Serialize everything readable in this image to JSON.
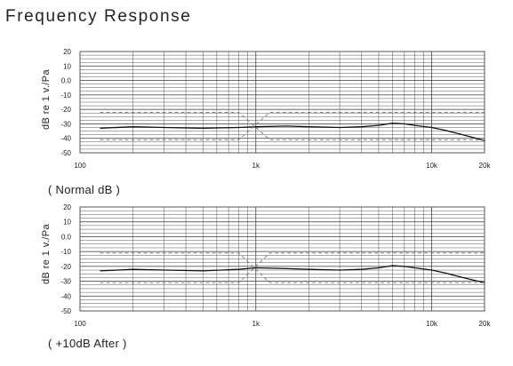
{
  "page": {
    "title": "Frequency Response"
  },
  "colors": {
    "grid": "#555555",
    "trace": "#111111",
    "dashed": "#777777"
  },
  "chart_data": [
    {
      "type": "line",
      "caption": "( Normal dB )",
      "ylabel": "dB re 1 v./Pa",
      "xscale": "log",
      "xlim": [
        100,
        20000
      ],
      "ylim": [
        -50,
        20
      ],
      "yticks": [
        "20",
        "10",
        "0.0",
        "-10",
        "-20",
        "-30",
        "-40",
        "-50"
      ],
      "ytick_values": [
        20,
        10,
        0,
        -10,
        -20,
        -30,
        -40,
        -50
      ],
      "xticks": [
        "100",
        "1k",
        "10k",
        "20k"
      ],
      "xtick_values": [
        100,
        1000,
        10000,
        20000
      ],
      "grid": true,
      "series": [
        {
          "style": "solid",
          "x": [
            130,
            200,
            300,
            500,
            800,
            1000,
            1500,
            2000,
            3000,
            4000,
            5000,
            6000,
            7000,
            8000,
            10000,
            12000,
            15000,
            20000
          ],
          "y": [
            -33,
            -32,
            -32.5,
            -33,
            -32.5,
            -32,
            -31.5,
            -32,
            -32.5,
            -32,
            -31,
            -29.5,
            -30,
            -31,
            -32.5,
            -34.5,
            -37.5,
            -41.5
          ]
        },
        {
          "style": "dashed",
          "x": [
            130,
            800,
            1200,
            20000
          ],
          "y": [
            -22,
            -22,
            -41,
            -41
          ]
        },
        {
          "style": "dashed",
          "x": [
            130,
            800,
            1200,
            20000
          ],
          "y": [
            -41,
            -41,
            -22,
            -22
          ]
        }
      ]
    },
    {
      "type": "line",
      "caption": "( +10dB After )",
      "ylabel": "dB re 1 v./Pa",
      "xscale": "log",
      "xlim": [
        100,
        20000
      ],
      "ylim": [
        -50,
        20
      ],
      "yticks": [
        "20",
        "10",
        "0.0",
        "-10",
        "-20",
        "-30",
        "-40",
        "-50"
      ],
      "ytick_values": [
        20,
        10,
        0,
        -10,
        -20,
        -30,
        -40,
        -50
      ],
      "xticks": [
        "100",
        "1k",
        "10k",
        "20k"
      ],
      "xtick_values": [
        100,
        1000,
        10000,
        20000
      ],
      "grid": true,
      "series": [
        {
          "style": "solid",
          "x": [
            130,
            200,
            300,
            500,
            800,
            1000,
            1500,
            2000,
            3000,
            4000,
            5000,
            6000,
            7000,
            8000,
            10000,
            12000,
            15000,
            20000
          ],
          "y": [
            -23,
            -22,
            -22.5,
            -23,
            -22,
            -21,
            -21.5,
            -22,
            -22.5,
            -22,
            -21,
            -19.5,
            -20,
            -21,
            -22.5,
            -24.5,
            -27.5,
            -31
          ]
        },
        {
          "style": "dashed",
          "x": [
            130,
            800,
            1200,
            20000
          ],
          "y": [
            -11,
            -11,
            -31,
            -31
          ]
        },
        {
          "style": "dashed",
          "x": [
            130,
            800,
            1200,
            20000
          ],
          "y": [
            -31,
            -31,
            -11,
            -11
          ]
        }
      ]
    }
  ]
}
